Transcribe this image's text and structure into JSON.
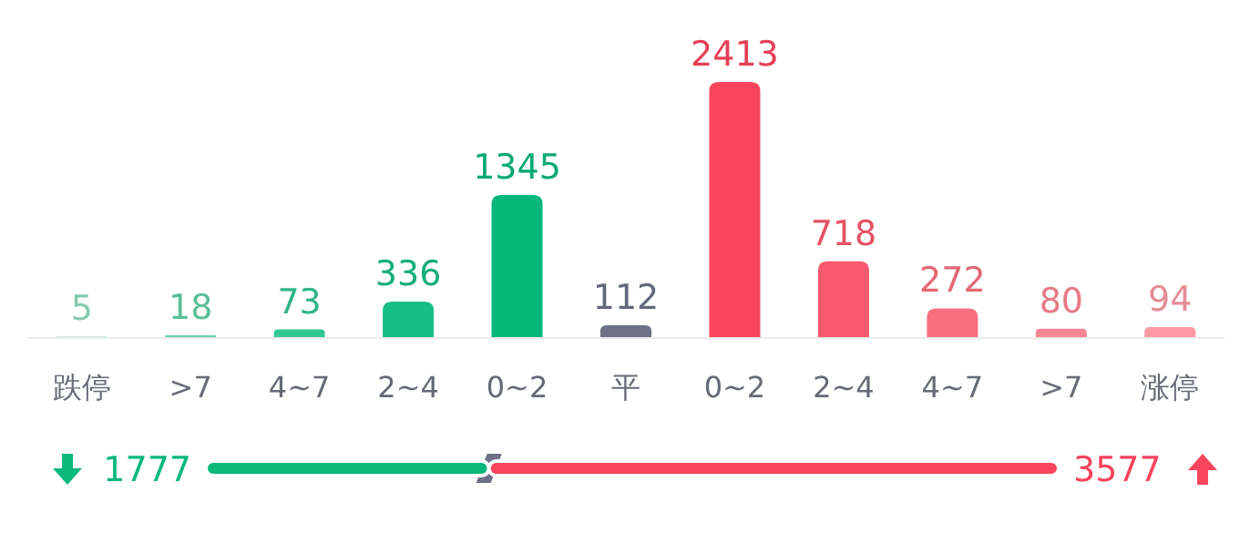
{
  "chart_data": [
    {
      "type": "bar",
      "categories": [
        "跌停",
        ">7",
        "4~7",
        "2~4",
        "0~2",
        "平",
        "0~2",
        "2~4",
        "4~7",
        ">7",
        "涨停"
      ],
      "values": [
        5,
        18,
        73,
        336,
        1345,
        112,
        2413,
        718,
        272,
        80,
        94
      ],
      "colors": [
        "#8fdcbd",
        "#62d0a5",
        "#35c592",
        "#17bd84",
        "#08b87b",
        "#6c7185",
        "#f8455d",
        "#f8596d",
        "#f8707f",
        "#f98693",
        "#fa99a5"
      ],
      "data_labels": true
    },
    {
      "type": "bar",
      "orientation": "horizontal",
      "stacked": true,
      "categories": [
        null
      ],
      "series": [
        {
          "color": "#0bb87c",
          "values": [
            1777
          ]
        },
        {
          "color": "#f8455d",
          "values": [
            3577
          ]
        }
      ],
      "data_labels": true
    }
  ]
}
